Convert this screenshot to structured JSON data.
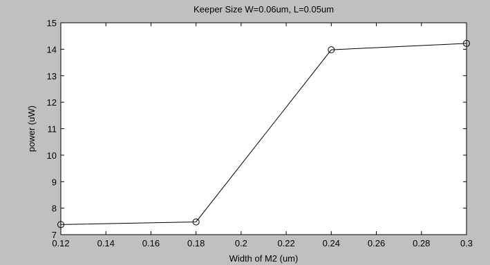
{
  "colors": {
    "figure_background": "#c0c0c0",
    "axes_background": "#ffffff",
    "line": "#000000"
  },
  "chart_data": {
    "type": "line",
    "title": "Keeper Size W=0.06um, L=0.05um",
    "xlabel": "Width of M2 (um)",
    "ylabel": "power (uW)",
    "xlim": [
      0.12,
      0.3
    ],
    "ylim": [
      7,
      15
    ],
    "xticks": [
      0.12,
      0.14,
      0.16,
      0.18,
      0.2,
      0.22,
      0.24,
      0.26,
      0.28,
      0.3
    ],
    "xtick_labels": [
      "0.12",
      "0.14",
      "0.16",
      "0.18",
      "0.2",
      "0.22",
      "0.24",
      "0.26",
      "0.28",
      "0.3"
    ],
    "yticks": [
      7,
      8,
      9,
      10,
      11,
      12,
      13,
      14,
      15
    ],
    "ytick_labels": [
      "7",
      "8",
      "9",
      "10",
      "11",
      "12",
      "13",
      "14",
      "15"
    ],
    "grid": false,
    "marker": "circle",
    "series": [
      {
        "x": [
          0.12,
          0.18,
          0.24,
          0.3
        ],
        "y": [
          7.38,
          7.48,
          13.98,
          14.22
        ]
      }
    ]
  }
}
